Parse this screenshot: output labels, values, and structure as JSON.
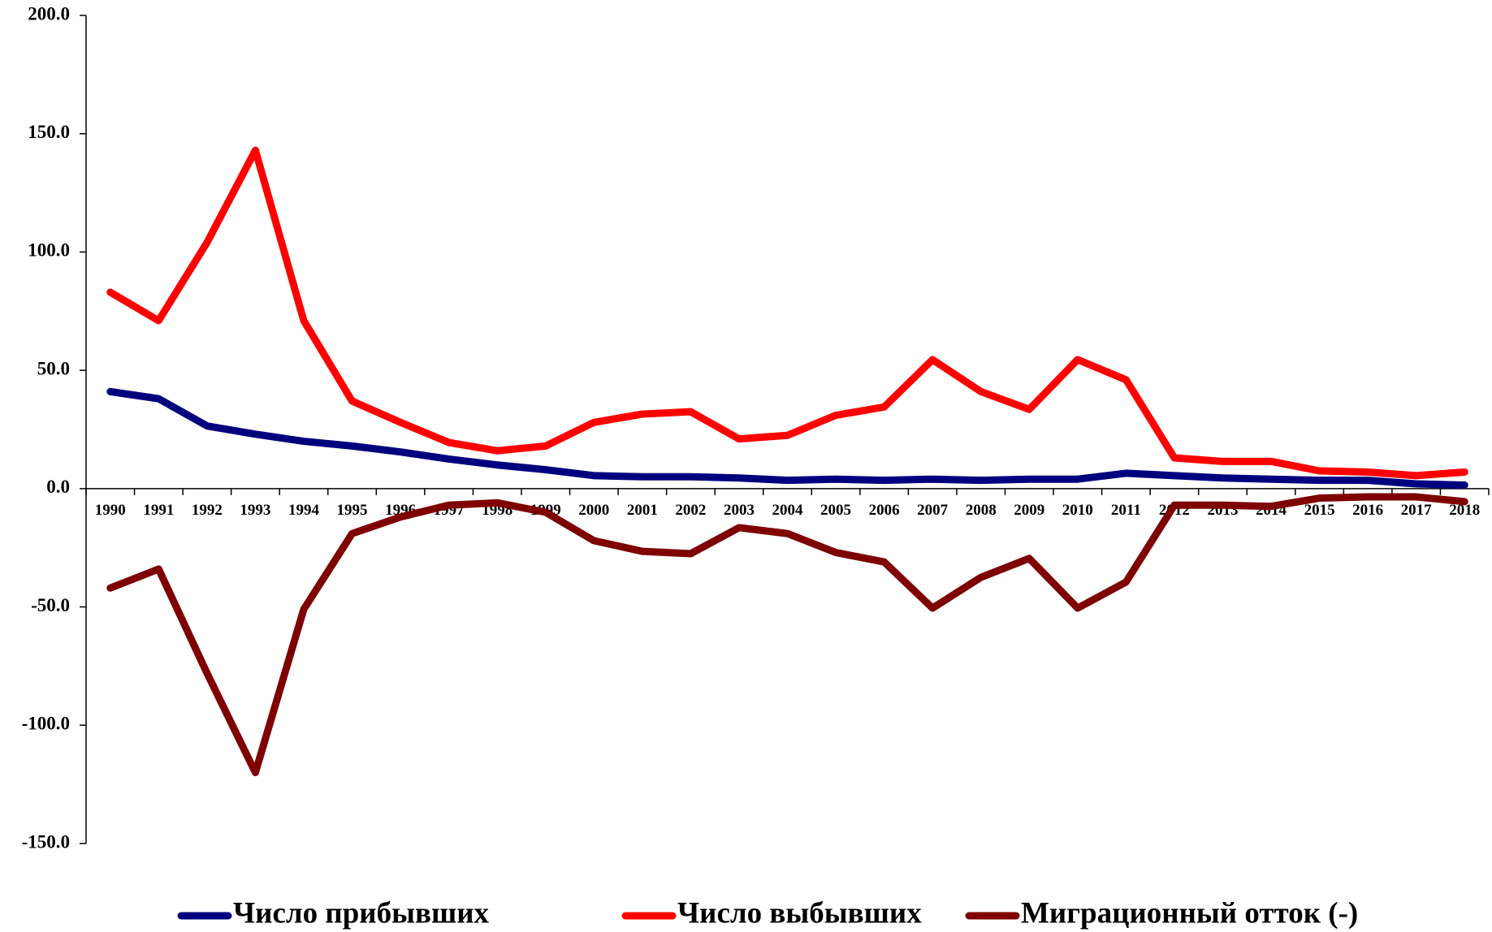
{
  "chart_data": {
    "type": "line",
    "categories": [
      "1990",
      "1991",
      "1992",
      "1993",
      "1994",
      "1995",
      "1996",
      "1997",
      "1998",
      "1999",
      "2000",
      "2001",
      "2002",
      "2003",
      "2004",
      "2005",
      "2006",
      "2007",
      "2008",
      "2009",
      "2010",
      "2011",
      "2012",
      "2013",
      "2014",
      "2015",
      "2016",
      "2017",
      "2018"
    ],
    "series": [
      {
        "name": "Число прибывших",
        "color": "#00007f",
        "values": [
          41,
          38,
          26.5,
          23,
          20,
          18,
          15.5,
          12.5,
          10,
          8,
          5.5,
          5,
          5,
          4.5,
          3.5,
          4,
          3.5,
          4,
          3.5,
          4,
          4,
          6.5,
          5.5,
          4.5,
          4,
          3.5,
          3.5,
          2,
          1.5
        ]
      },
      {
        "name": "Число выбывших",
        "color": "#ff0000",
        "values": [
          83,
          71,
          104,
          143,
          71,
          37,
          28,
          19.5,
          16,
          18,
          28,
          31.5,
          32.5,
          21,
          22.5,
          31,
          34.5,
          54.5,
          41,
          33.5,
          54.5,
          46,
          13,
          11.5,
          11.5,
          7.5,
          7,
          5.5,
          7
        ]
      },
      {
        "name": "Миграционный отток (-)",
        "color": "#7f0000",
        "values": [
          -42,
          -34,
          -78,
          -120,
          -51,
          -19,
          -12,
          -7,
          -6,
          -10,
          -22,
          -26.5,
          -27.5,
          -16.5,
          -19,
          -27,
          -31,
          -50.5,
          -37.5,
          -29.5,
          -50.5,
          -39.5,
          -7,
          -7,
          -7.5,
          -4,
          -3.5,
          -3.5,
          -5.5
        ]
      }
    ],
    "ylim": [
      -150,
      200
    ],
    "yticks": [
      {
        "value": 200,
        "label": "200.0"
      },
      {
        "value": 150,
        "label": "150.0"
      },
      {
        "value": 100,
        "label": "100.0"
      },
      {
        "value": 50,
        "label": "50.0"
      },
      {
        "value": 0,
        "label": "0.0"
      },
      {
        "value": -50,
        "label": "-50.0"
      },
      {
        "value": -100,
        "label": "-100.0"
      },
      {
        "value": -150,
        "label": "-150.0"
      }
    ],
    "legend": "bottom"
  }
}
